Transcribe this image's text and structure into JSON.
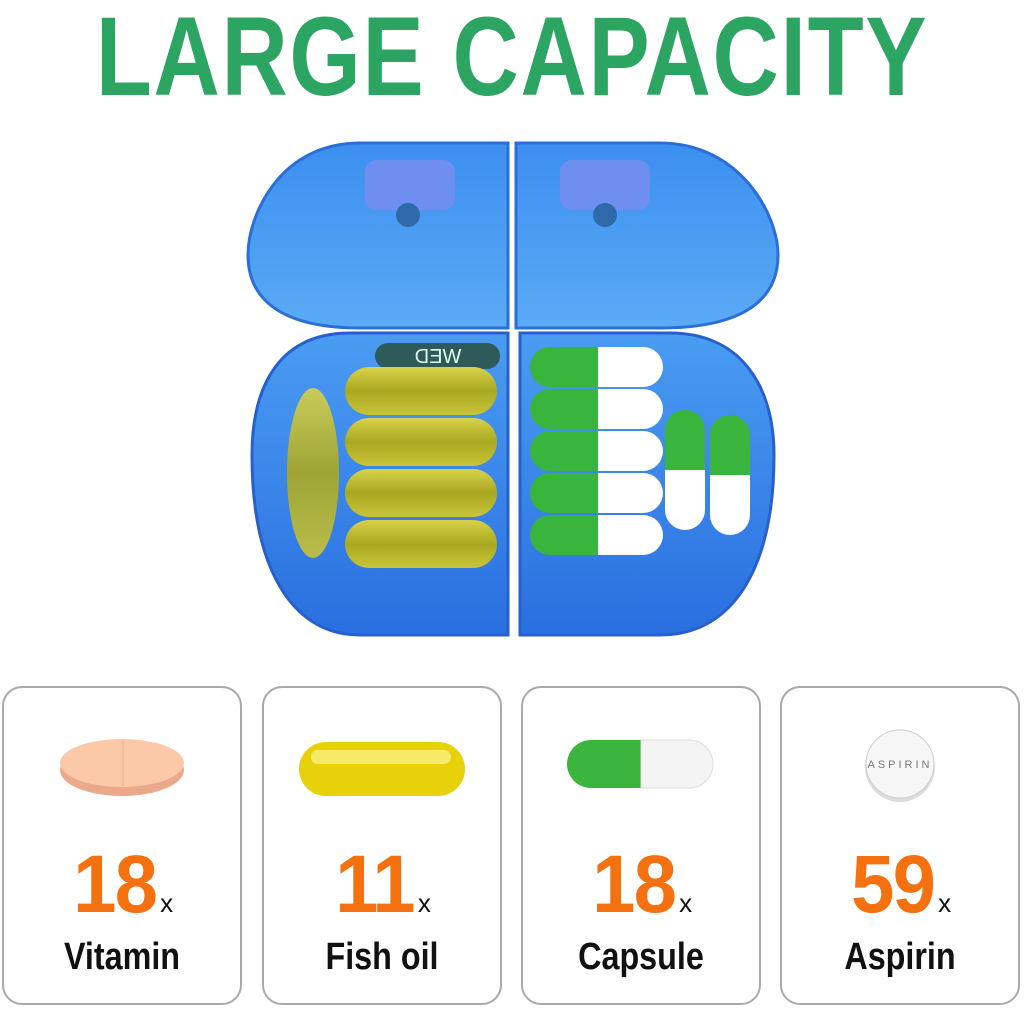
{
  "title": "LARGE CAPACITY",
  "pill_box": {
    "compartment_label": "WED",
    "color": "#2f7fe6"
  },
  "colors": {
    "title": "#2da562",
    "count": "#f5700f"
  },
  "items": [
    {
      "count": "18",
      "unit": "x",
      "label": "Vitamin",
      "icon": "vitamin-tablet-icon"
    },
    {
      "count": "11",
      "unit": "x",
      "label": "Fish oil",
      "icon": "fish-oil-softgel-icon"
    },
    {
      "count": "18",
      "unit": "x",
      "label": "Capsule",
      "icon": "capsule-icon"
    },
    {
      "count": "59",
      "unit": "x",
      "label": "Aspirin",
      "icon": "aspirin-tablet-icon",
      "imprint": "ASPIRIN"
    }
  ]
}
